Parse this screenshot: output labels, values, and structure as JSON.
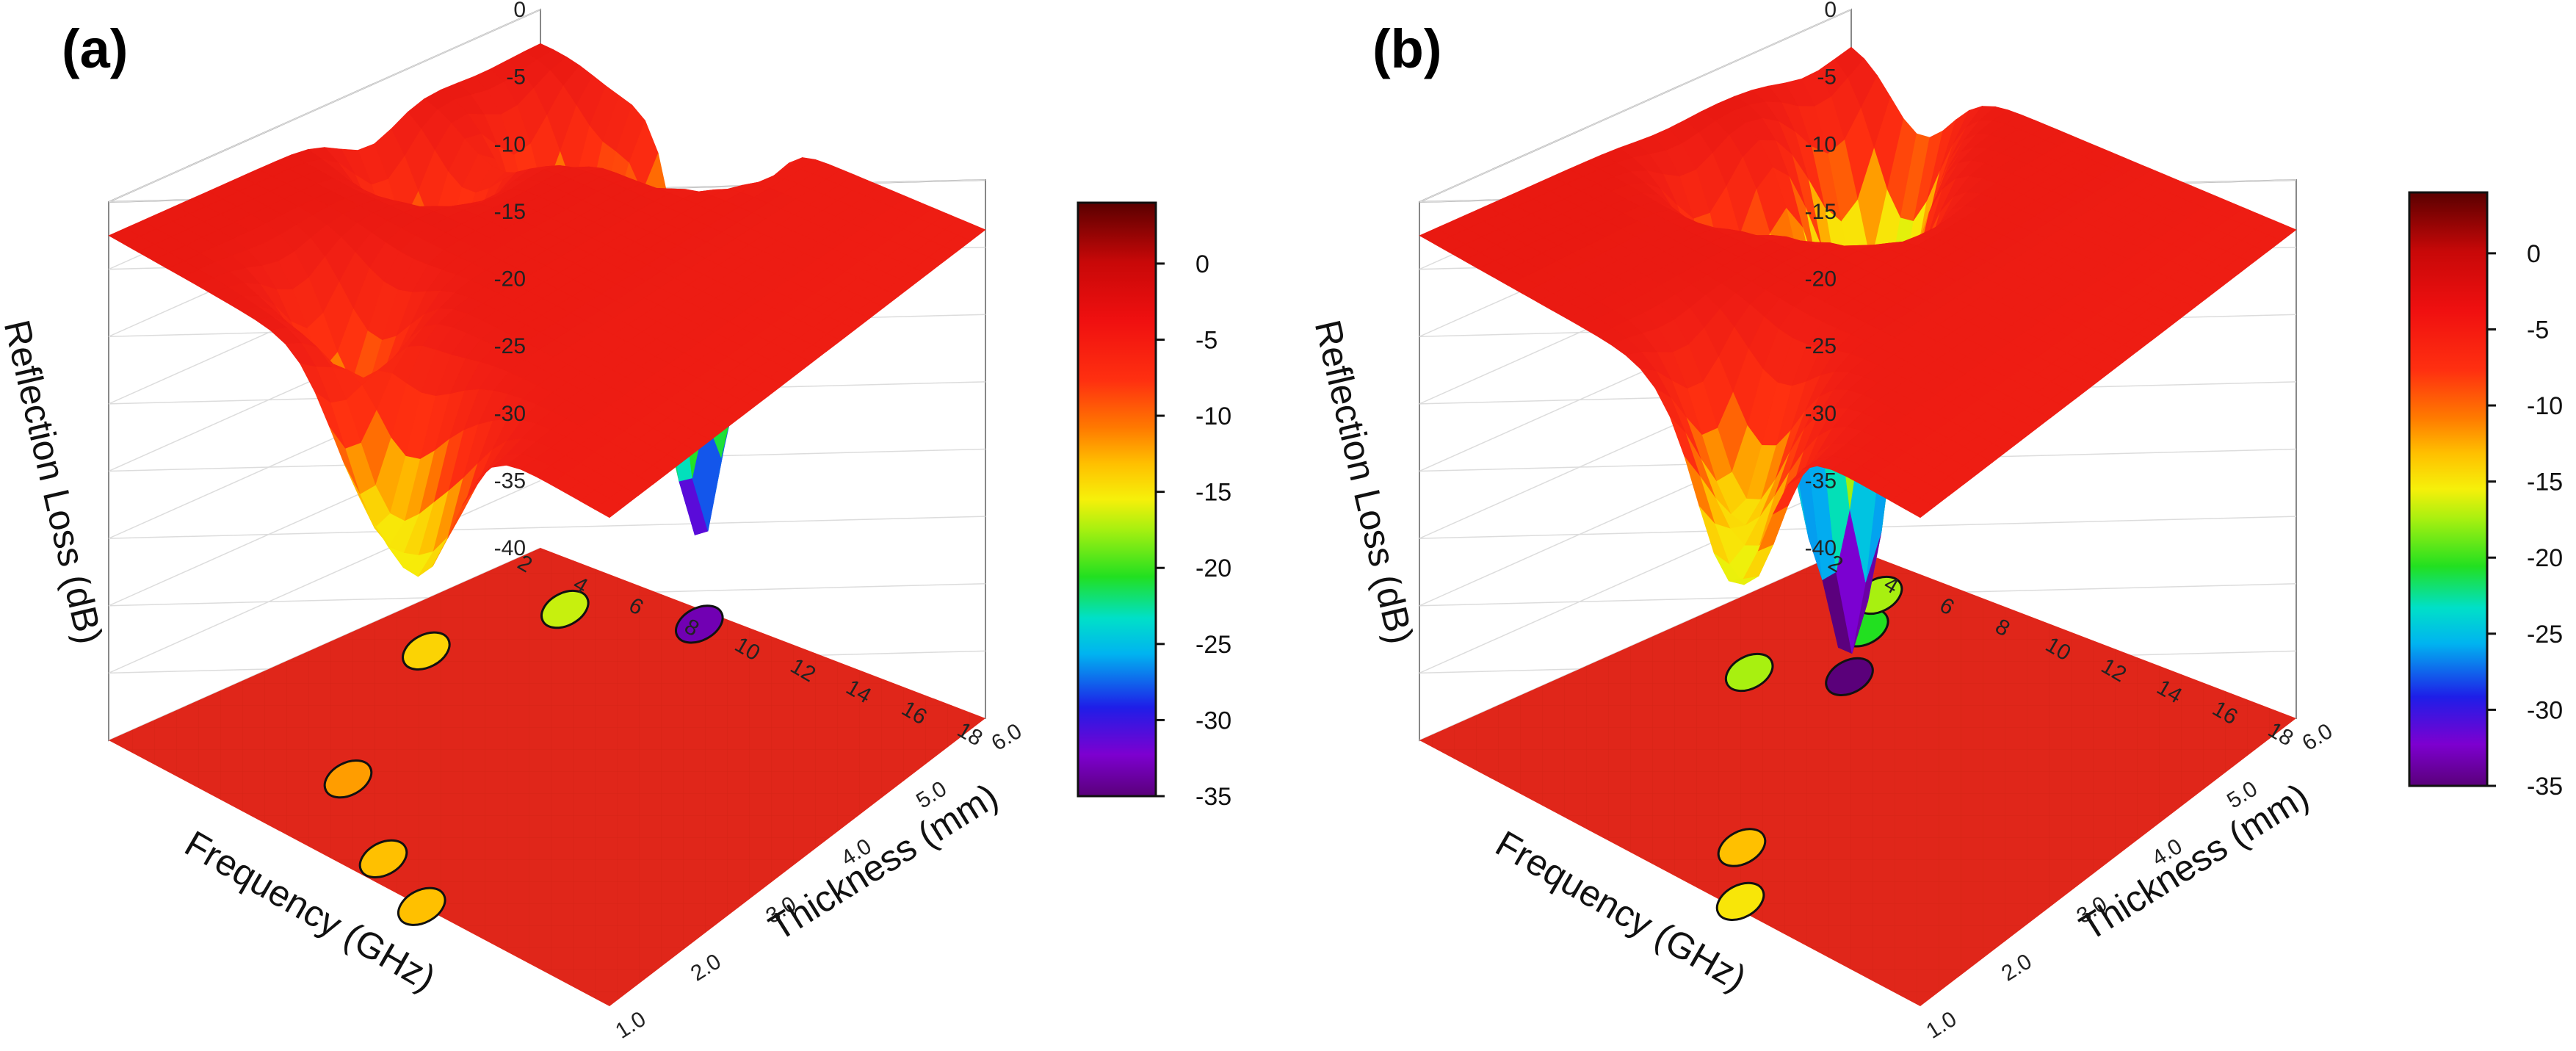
{
  "chart_data": [
    {
      "panel": "(a)",
      "type": "surface3d",
      "zlabel": "Reflection Loss (dB)",
      "xlabel": "Frequency (GHz)",
      "ylabel": "Thickness (mm)",
      "x_ticks": [
        "2",
        "4",
        "6",
        "8",
        "10",
        "12",
        "14",
        "16",
        "18"
      ],
      "y_ticks": [
        "1.0",
        "2.0",
        "3.0",
        "4.0",
        "5.0",
        "6.0"
      ],
      "z_ticks": [
        "0",
        "-5",
        "-10",
        "-15",
        "-20",
        "-25",
        "-30",
        "-35",
        "-40"
      ],
      "xlim": [
        2,
        18
      ],
      "ylim": [
        1.0,
        6.0
      ],
      "zlim": [
        -40,
        0
      ],
      "colorbar": {
        "ticks": [
          "0",
          "-5",
          "-10",
          "-15",
          "-20",
          "-25",
          "-30",
          "-35"
        ],
        "range": [
          -35,
          4
        ]
      },
      "contour_level": -10,
      "minimum_rl": -33,
      "dips": [
        {
          "freq": 12.0,
          "thick": 1.0,
          "rl": -13
        },
        {
          "freq": 10.0,
          "thick": 1.3,
          "rl": -13
        },
        {
          "freq": 7.0,
          "thick": 2.0,
          "rl": -12
        },
        {
          "freq": 4.0,
          "thick": 4.0,
          "rl": -14
        },
        {
          "freq": 5.0,
          "thick": 5.3,
          "rl": -17
        },
        {
          "freq": 8.3,
          "thick": 5.8,
          "rl": -33
        }
      ],
      "surface_shape": "ridge",
      "ridge": [
        [
          3.0,
          4.5
        ],
        [
          3.8,
          3.5
        ],
        [
          5.5,
          2.5
        ],
        [
          8.0,
          1.5
        ],
        [
          11.0,
          1.0
        ]
      ],
      "surface_trough": [
        [
          3.5,
          5.0
        ],
        [
          7.5,
          4.5
        ],
        [
          11.0,
          3.8
        ],
        [
          16.0,
          3.0
        ]
      ],
      "notch": [
        [
          15.0,
          1.8
        ],
        [
          18.0,
          2.0
        ]
      ],
      "fill": "#f22a1a"
    },
    {
      "panel": "(b)",
      "type": "surface3d",
      "zlabel": "Reflection Loss (dB)",
      "xlabel": "Frequency (GHz)",
      "ylabel": "Thickness (mm)",
      "x_ticks": [
        "2",
        "4",
        "6",
        "8",
        "10",
        "12",
        "14",
        "16",
        "18"
      ],
      "y_ticks": [
        "1.0",
        "2.0",
        "3.0",
        "4.0",
        "5.0",
        "6.0"
      ],
      "z_ticks": [
        "0",
        "-5",
        "-10",
        "-15",
        "-20",
        "-25",
        "-30",
        "-35",
        "-40"
      ],
      "xlim": [
        2,
        18
      ],
      "ylim": [
        1.0,
        6.0
      ],
      "zlim": [
        -40,
        0
      ],
      "colorbar": {
        "ticks": [
          "0",
          "-5",
          "-10",
          "-15",
          "-20",
          "-25",
          "-30",
          "-35"
        ],
        "range": [
          -35,
          4
        ]
      },
      "contour_level": -10,
      "minimum_rl": -37,
      "dips": [
        {
          "freq": 12.0,
          "thick": 1.1,
          "rl": -15
        },
        {
          "freq": 10.5,
          "thick": 1.7,
          "rl": -13
        },
        {
          "freq": 5.0,
          "thick": 3.8,
          "rl": -18
        },
        {
          "freq": 7.0,
          "thick": 4.3,
          "rl": -37
        },
        {
          "freq": 5.5,
          "thick": 5.0,
          "rl": -21
        },
        {
          "freq": 4.5,
          "thick": 5.5,
          "rl": -18
        }
      ],
      "surface_shape": "ridge",
      "ridge": [
        [
          3.0,
          4.5
        ],
        [
          3.8,
          3.5
        ],
        [
          5.5,
          2.5
        ],
        [
          8.0,
          1.5
        ],
        [
          11.0,
          1.0
        ]
      ],
      "surface_trough": [
        [
          3.5,
          5.0
        ],
        [
          7.5,
          4.5
        ],
        [
          11.0,
          3.8
        ],
        [
          16.0,
          3.0
        ]
      ],
      "notch": [
        [
          15.0,
          1.8
        ],
        [
          18.0,
          2.0
        ]
      ],
      "fill": "#f22a1a"
    }
  ]
}
